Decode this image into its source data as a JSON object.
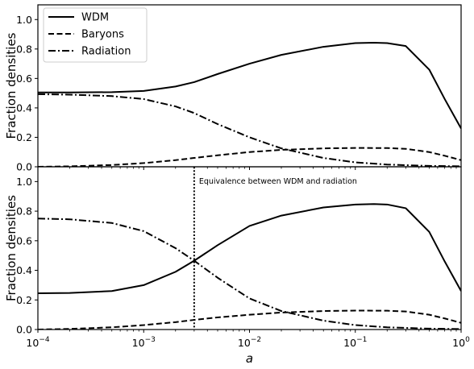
{
  "chart_data": [
    {
      "type": "line",
      "panel": "top",
      "title": "",
      "xlabel": "",
      "ylabel": "Fraction densities",
      "xscale": "log",
      "xlim": [
        0.0001,
        1
      ],
      "ylim": [
        0,
        1.1
      ],
      "yticks": [
        "0.0",
        "0.2",
        "0.4",
        "0.6",
        "0.8",
        "1.0"
      ],
      "grid": false,
      "legend_position": "top-left",
      "series": [
        {
          "name": "WDM",
          "style": "solid",
          "x": [
            0.0001,
            0.0002,
            0.0005,
            0.001,
            0.002,
            0.003,
            0.005,
            0.01,
            0.02,
            0.05,
            0.1,
            0.15,
            0.2,
            0.3,
            0.5,
            0.7,
            1.0
          ],
          "y": [
            0.505,
            0.505,
            0.507,
            0.515,
            0.545,
            0.575,
            0.63,
            0.7,
            0.76,
            0.815,
            0.84,
            0.843,
            0.84,
            0.82,
            0.66,
            0.46,
            0.26
          ]
        },
        {
          "name": "Baryons",
          "style": "dashed",
          "x": [
            0.0001,
            0.0002,
            0.0005,
            0.001,
            0.002,
            0.003,
            0.005,
            0.01,
            0.02,
            0.05,
            0.1,
            0.2,
            0.3,
            0.5,
            0.7,
            1.0
          ],
          "y": [
            0.0,
            0.003,
            0.012,
            0.025,
            0.045,
            0.06,
            0.078,
            0.1,
            0.115,
            0.125,
            0.128,
            0.127,
            0.122,
            0.1,
            0.075,
            0.045
          ]
        },
        {
          "name": "Radiation",
          "style": "dashdot",
          "x": [
            0.0001,
            0.0002,
            0.0005,
            0.001,
            0.002,
            0.003,
            0.005,
            0.01,
            0.02,
            0.05,
            0.1,
            0.2,
            0.5,
            1.0
          ],
          "y": [
            0.493,
            0.49,
            0.48,
            0.46,
            0.41,
            0.365,
            0.29,
            0.2,
            0.125,
            0.06,
            0.03,
            0.015,
            0.006,
            0.003
          ]
        }
      ]
    },
    {
      "type": "line",
      "panel": "bottom",
      "title": "",
      "xlabel": "a",
      "ylabel": "Fraction densities",
      "xscale": "log",
      "xlim": [
        0.0001,
        1
      ],
      "ylim": [
        0,
        1.1
      ],
      "xticks": [
        {
          "base": "10",
          "exp": "−4"
        },
        {
          "base": "10",
          "exp": "−3"
        },
        {
          "base": "10",
          "exp": "−2"
        },
        {
          "base": "10",
          "exp": "−1"
        },
        {
          "base": "10",
          "exp": "0"
        }
      ],
      "yticks": [
        "0.0",
        "0.2",
        "0.4",
        "0.6",
        "0.8",
        "1.0"
      ],
      "grid": false,
      "annotation": {
        "text": "Equivalence between WDM and radiation",
        "x": 0.003,
        "line_style": "dotted"
      },
      "series": [
        {
          "style": "solid",
          "x": [
            0.0001,
            0.0002,
            0.0005,
            0.001,
            0.002,
            0.003,
            0.005,
            0.01,
            0.02,
            0.05,
            0.1,
            0.15,
            0.2,
            0.3,
            0.5,
            0.7,
            1.0
          ],
          "y": [
            0.245,
            0.247,
            0.26,
            0.3,
            0.39,
            0.465,
            0.57,
            0.7,
            0.77,
            0.825,
            0.845,
            0.848,
            0.845,
            0.82,
            0.66,
            0.46,
            0.26
          ]
        },
        {
          "style": "dashed",
          "x": [
            0.0001,
            0.0002,
            0.0005,
            0.001,
            0.002,
            0.003,
            0.005,
            0.01,
            0.02,
            0.05,
            0.1,
            0.2,
            0.3,
            0.5,
            0.7,
            1.0
          ],
          "y": [
            0.0,
            0.004,
            0.015,
            0.03,
            0.05,
            0.065,
            0.082,
            0.1,
            0.115,
            0.125,
            0.128,
            0.127,
            0.122,
            0.1,
            0.075,
            0.045
          ]
        },
        {
          "style": "dashdot",
          "x": [
            0.0001,
            0.0002,
            0.0005,
            0.001,
            0.002,
            0.003,
            0.005,
            0.01,
            0.02,
            0.05,
            0.1,
            0.2,
            0.5,
            1.0
          ],
          "y": [
            0.75,
            0.745,
            0.72,
            0.665,
            0.55,
            0.465,
            0.35,
            0.21,
            0.125,
            0.06,
            0.03,
            0.015,
            0.006,
            0.003
          ]
        }
      ]
    }
  ]
}
